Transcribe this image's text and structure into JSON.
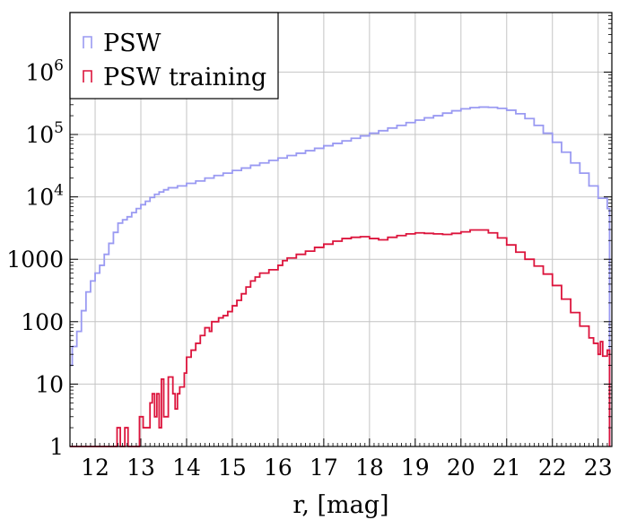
{
  "chart_data": {
    "type": "histogram",
    "title": "",
    "xlabel": "r, [mag]",
    "ylabel": "",
    "xlim": [
      11.45,
      23.3
    ],
    "ylim": [
      1,
      9000000
    ],
    "y_scale": "log",
    "grid": true,
    "legend_position": "top-left",
    "x_ticks": [
      12,
      13,
      14,
      15,
      16,
      17,
      18,
      19,
      20,
      21,
      22,
      23
    ],
    "x_tick_labels": [
      "12",
      "13",
      "14",
      "15",
      "16",
      "17",
      "18",
      "19",
      "20",
      "21",
      "22",
      "23"
    ],
    "y_ticks": [
      1,
      10,
      100,
      1000,
      10000,
      100000,
      1000000
    ],
    "y_tick_labels": [
      {
        "base": "1",
        "exp": ""
      },
      {
        "base": "10",
        "exp": ""
      },
      {
        "base": "100",
        "exp": ""
      },
      {
        "base": "1000",
        "exp": ""
      },
      {
        "base": "10",
        "exp": "4"
      },
      {
        "base": "10",
        "exp": "5"
      },
      {
        "base": "10",
        "exp": "6"
      }
    ],
    "series": [
      {
        "name": "PSW",
        "color": "#9a9af2",
        "points": [
          [
            11.45,
            20
          ],
          [
            11.5,
            40
          ],
          [
            11.6,
            70
          ],
          [
            11.7,
            150
          ],
          [
            11.8,
            300
          ],
          [
            11.9,
            450
          ],
          [
            12.0,
            600
          ],
          [
            12.1,
            800
          ],
          [
            12.2,
            1200
          ],
          [
            12.3,
            1800
          ],
          [
            12.4,
            2700
          ],
          [
            12.5,
            3800
          ],
          [
            12.6,
            4300
          ],
          [
            12.7,
            4800
          ],
          [
            12.8,
            5600
          ],
          [
            12.9,
            6500
          ],
          [
            13.0,
            7500
          ],
          [
            13.1,
            8500
          ],
          [
            13.2,
            9800
          ],
          [
            13.3,
            11000
          ],
          [
            13.4,
            12000
          ],
          [
            13.5,
            13000
          ],
          [
            13.6,
            14000
          ],
          [
            13.8,
            15000
          ],
          [
            14.0,
            16500
          ],
          [
            14.2,
            18000
          ],
          [
            14.4,
            20000
          ],
          [
            14.6,
            22000
          ],
          [
            14.8,
            24000
          ],
          [
            15.0,
            26500
          ],
          [
            15.2,
            29000
          ],
          [
            15.4,
            32000
          ],
          [
            15.6,
            35000
          ],
          [
            15.8,
            38500
          ],
          [
            16.0,
            42000
          ],
          [
            16.2,
            46000
          ],
          [
            16.4,
            50000
          ],
          [
            16.6,
            55000
          ],
          [
            16.8,
            60000
          ],
          [
            17.0,
            66000
          ],
          [
            17.2,
            72000
          ],
          [
            17.4,
            79000
          ],
          [
            17.6,
            87000
          ],
          [
            17.8,
            95000
          ],
          [
            18.0,
            105000
          ],
          [
            18.2,
            115000
          ],
          [
            18.4,
            127000
          ],
          [
            18.6,
            140000
          ],
          [
            18.8,
            155000
          ],
          [
            19.0,
            170000
          ],
          [
            19.2,
            185000
          ],
          [
            19.4,
            200000
          ],
          [
            19.6,
            220000
          ],
          [
            19.8,
            240000
          ],
          [
            20.0,
            258000
          ],
          [
            20.2,
            270000
          ],
          [
            20.4,
            275000
          ],
          [
            20.6,
            272000
          ],
          [
            20.8,
            262000
          ],
          [
            21.0,
            245000
          ],
          [
            21.2,
            215000
          ],
          [
            21.4,
            180000
          ],
          [
            21.6,
            140000
          ],
          [
            21.8,
            105000
          ],
          [
            22.0,
            75000
          ],
          [
            22.2,
            52000
          ],
          [
            22.4,
            35000
          ],
          [
            22.6,
            24000
          ],
          [
            22.8,
            15000
          ],
          [
            23.0,
            9500
          ],
          [
            23.2,
            6500
          ],
          [
            23.25,
            1
          ]
        ]
      },
      {
        "name": "PSW training",
        "color": "#dc143c",
        "points": [
          [
            11.45,
            1
          ],
          [
            12.0,
            1
          ],
          [
            12.45,
            1
          ],
          [
            12.48,
            2
          ],
          [
            12.55,
            1
          ],
          [
            12.65,
            2
          ],
          [
            12.72,
            1
          ],
          [
            12.95,
            1
          ],
          [
            12.97,
            3
          ],
          [
            13.05,
            2
          ],
          [
            13.15,
            2
          ],
          [
            13.2,
            5
          ],
          [
            13.25,
            7
          ],
          [
            13.3,
            3
          ],
          [
            13.35,
            7
          ],
          [
            13.4,
            2
          ],
          [
            13.45,
            12
          ],
          [
            13.5,
            3
          ],
          [
            13.6,
            13
          ],
          [
            13.7,
            7
          ],
          [
            13.75,
            4
          ],
          [
            13.8,
            7
          ],
          [
            13.85,
            9
          ],
          [
            13.95,
            15
          ],
          [
            14.0,
            27
          ],
          [
            14.1,
            35
          ],
          [
            14.2,
            45
          ],
          [
            14.3,
            60
          ],
          [
            14.4,
            80
          ],
          [
            14.5,
            70
          ],
          [
            14.55,
            100
          ],
          [
            14.7,
            115
          ],
          [
            14.8,
            125
          ],
          [
            14.9,
            145
          ],
          [
            15.0,
            180
          ],
          [
            15.1,
            220
          ],
          [
            15.2,
            280
          ],
          [
            15.3,
            360
          ],
          [
            15.4,
            450
          ],
          [
            15.5,
            520
          ],
          [
            15.6,
            600
          ],
          [
            15.8,
            680
          ],
          [
            16.0,
            800
          ],
          [
            16.1,
            950
          ],
          [
            16.2,
            1050
          ],
          [
            16.4,
            1200
          ],
          [
            16.6,
            1350
          ],
          [
            16.8,
            1550
          ],
          [
            17.0,
            1750
          ],
          [
            17.2,
            1950
          ],
          [
            17.4,
            2150
          ],
          [
            17.6,
            2250
          ],
          [
            17.8,
            2300
          ],
          [
            18.0,
            2150
          ],
          [
            18.2,
            2050
          ],
          [
            18.4,
            2250
          ],
          [
            18.6,
            2400
          ],
          [
            18.8,
            2550
          ],
          [
            19.0,
            2650
          ],
          [
            19.2,
            2600
          ],
          [
            19.4,
            2550
          ],
          [
            19.6,
            2500
          ],
          [
            19.8,
            2600
          ],
          [
            20.0,
            2750
          ],
          [
            20.2,
            2950
          ],
          [
            20.4,
            2950
          ],
          [
            20.6,
            2650
          ],
          [
            20.8,
            2200
          ],
          [
            21.0,
            1700
          ],
          [
            21.2,
            1300
          ],
          [
            21.4,
            1000
          ],
          [
            21.6,
            780
          ],
          [
            21.8,
            580
          ],
          [
            22.0,
            380
          ],
          [
            22.2,
            230
          ],
          [
            22.4,
            140
          ],
          [
            22.6,
            85
          ],
          [
            22.8,
            55
          ],
          [
            22.9,
            45
          ],
          [
            23.0,
            30
          ],
          [
            23.05,
            48
          ],
          [
            23.1,
            28
          ],
          [
            23.2,
            35
          ],
          [
            23.25,
            1
          ]
        ]
      }
    ]
  }
}
